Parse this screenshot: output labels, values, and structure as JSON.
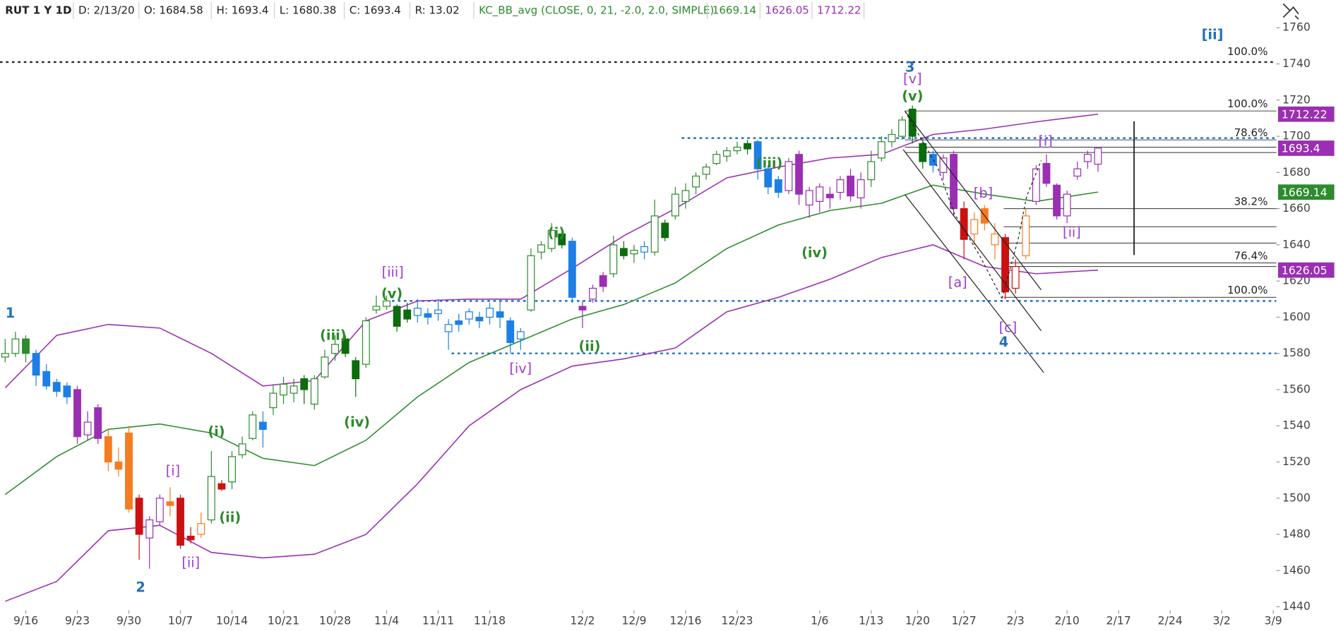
{
  "chart_data": {
    "type": "candlestick",
    "header": {
      "symbol": "RUT 1 Y 1D",
      "items": [
        "D: 2/13/20",
        "O: 1684.58",
        "H: 1693.4",
        "L: 1680.38",
        "C: 1693.4",
        "R: 13.02"
      ],
      "study": "KC_BB_avg (CLOSE, 0, 21, -2.0, 2.0, SIMPLE)"
    },
    "xlim": [
      -0.5,
      123.3
    ],
    "ylim": [
      1438.1,
      1775.1
    ],
    "yticks": [
      1440,
      1460,
      1480,
      1500,
      1520,
      1540,
      1560,
      1580,
      1600,
      1620,
      1640,
      1660,
      1680,
      1700,
      1720,
      1740,
      1760
    ],
    "xticks": [
      {
        "value": 2,
        "label": "9/16"
      },
      {
        "value": 7,
        "label": "9/23"
      },
      {
        "value": 12,
        "label": "9/30"
      },
      {
        "value": 17,
        "label": "10/7"
      },
      {
        "value": 22,
        "label": "10/14"
      },
      {
        "value": 27,
        "label": "10/21"
      },
      {
        "value": 32,
        "label": "10/28"
      },
      {
        "value": 37,
        "label": "11/4"
      },
      {
        "value": 42,
        "label": "11/11"
      },
      {
        "value": 47,
        "label": "11/18"
      },
      {
        "value": 56,
        "label": "12/2"
      },
      {
        "value": 61,
        "label": "12/9"
      },
      {
        "value": 66,
        "label": "12/16"
      },
      {
        "value": 71,
        "label": "12/23"
      },
      {
        "value": 79,
        "label": "1/6"
      },
      {
        "value": 84,
        "label": "1/13"
      },
      {
        "value": 88.5,
        "label": "1/20"
      },
      {
        "value": 93,
        "label": "1/27"
      },
      {
        "value": 98,
        "label": "2/3"
      },
      {
        "value": 103,
        "label": "2/10"
      },
      {
        "value": 108,
        "label": "2/17"
      },
      {
        "value": 113,
        "label": "2/24"
      },
      {
        "value": 118,
        "label": "3/2"
      },
      {
        "value": 123,
        "label": "3/9"
      }
    ],
    "open": [
      1578,
      1580,
      1588,
      1580,
      1570,
      1564,
      1562,
      1560,
      1535,
      1550,
      1534,
      1520,
      1536,
      1500,
      1478,
      1487,
      1498,
      1500,
      1479,
      1480,
      1488,
      1508,
      1509,
      1524,
      1533,
      1542,
      1550,
      1557,
      1558,
      1566,
      1552,
      1567,
      1580,
      1588,
      1576,
      1574,
      1604,
      1606,
      1606,
      1604,
      1601,
      1602,
      1602,
      1592,
      1598,
      1599,
      1600,
      1600,
      1603,
      1598,
      1588,
      1604,
      1636,
      1638,
      1646,
      1642,
      1606,
      1610,
      1623,
      1624,
      1638,
      1635,
      1636,
      1636,
      1652,
      1656,
      1664,
      1672,
      1679,
      1685,
      1689,
      1692,
      1696,
      1697,
      1682,
      1676,
      1670,
      1690,
      1662,
      1664,
      1668,
      1669,
      1678,
      1666,
      1676,
      1688,
      1697,
      1700,
      1715,
      1696,
      1690,
      1680,
      1690,
      1660,
      1646,
      1660,
      1640,
      1644,
      1616,
      1634,
      1664,
      1685,
      1673,
      1656,
      1678,
      1686,
      1684.58
    ],
    "high": [
      1588,
      1592,
      1590,
      1582,
      1574,
      1566,
      1564,
      1562,
      1548,
      1552,
      1538,
      1528,
      1540,
      1502,
      1490,
      1502,
      1506,
      1502,
      1484,
      1492,
      1526,
      1510,
      1526,
      1534,
      1548,
      1548,
      1563,
      1567,
      1566,
      1568,
      1568,
      1582,
      1590,
      1590,
      1578,
      1600,
      1612,
      1612,
      1607,
      1608,
      1610,
      1605,
      1610,
      1599,
      1602,
      1605,
      1603,
      1608,
      1610,
      1600,
      1594,
      1638,
      1642,
      1652,
      1648,
      1644,
      1609,
      1618,
      1625,
      1645,
      1642,
      1640,
      1642,
      1665,
      1654,
      1672,
      1674,
      1680,
      1685,
      1692,
      1694,
      1697,
      1698,
      1698,
      1684,
      1678,
      1688,
      1692,
      1672,
      1674,
      1672,
      1678,
      1682,
      1680,
      1692,
      1700,
      1704,
      1711,
      1717,
      1698,
      1692,
      1690,
      1692,
      1664,
      1658,
      1662,
      1652,
      1646,
      1632,
      1660,
      1684,
      1690,
      1674,
      1670,
      1686,
      1692,
      1693.4
    ],
    "low": [
      1575,
      1578,
      1575,
      1562,
      1560,
      1556,
      1552,
      1530,
      1532,
      1530,
      1515,
      1512,
      1492,
      1466,
      1461,
      1485,
      1490,
      1472,
      1475,
      1478,
      1486,
      1504,
      1505,
      1522,
      1532,
      1528,
      1546,
      1552,
      1553,
      1552,
      1549,
      1566,
      1576,
      1578,
      1556,
      1572,
      1602,
      1604,
      1592,
      1597,
      1597,
      1596,
      1598,
      1582,
      1592,
      1596,
      1594,
      1596,
      1594,
      1580,
      1582,
      1603,
      1632,
      1636,
      1638,
      1608,
      1594,
      1608,
      1614,
      1622,
      1632,
      1630,
      1632,
      1634,
      1642,
      1654,
      1660,
      1668,
      1676,
      1684,
      1686,
      1690,
      1690,
      1676,
      1668,
      1666,
      1668,
      1662,
      1655,
      1658,
      1660,
      1665,
      1664,
      1660,
      1672,
      1686,
      1694,
      1698,
      1696,
      1682,
      1680,
      1676,
      1656,
      1632,
      1640,
      1648,
      1632,
      1610,
      1613,
      1632,
      1662,
      1672,
      1654,
      1652,
      1676,
      1682,
      1680.38
    ],
    "close": [
      1580,
      1588,
      1580,
      1568,
      1562,
      1559,
      1556,
      1534,
      1542,
      1533,
      1520,
      1516,
      1494,
      1480,
      1488,
      1500,
      1496,
      1474,
      1477,
      1486,
      1512,
      1505,
      1523,
      1530,
      1546,
      1538,
      1558,
      1563,
      1562,
      1560,
      1566,
      1578,
      1585,
      1580,
      1566,
      1598,
      1606,
      1609,
      1595,
      1599,
      1605,
      1600,
      1604,
      1596,
      1596,
      1603,
      1598,
      1605,
      1600,
      1586,
      1592,
      1634,
      1640,
      1648,
      1640,
      1611,
      1604,
      1616,
      1617,
      1640,
      1634,
      1637,
      1639,
      1656,
      1644,
      1668,
      1670,
      1678,
      1683,
      1690,
      1692,
      1694,
      1693,
      1682,
      1672,
      1669,
      1686,
      1668,
      1670,
      1672,
      1666,
      1676,
      1667,
      1676,
      1686,
      1697,
      1701,
      1709,
      1700,
      1686,
      1684,
      1688,
      1660,
      1643,
      1654,
      1652,
      1646,
      1614,
      1628,
      1656,
      1682,
      1674,
      1656,
      1668,
      1682,
      1690,
      1693.4
    ],
    "colors": [
      "#2e8b2e",
      "#2e8b2e",
      "#2e8b2e",
      "#1d7fe6",
      "#1d7fe6",
      "#1d7fe6",
      "#1d7fe6",
      "#9a2fb3",
      "#9a2fb3",
      "#9a2fb3",
      "#f47d20",
      "#f47d20",
      "#f47d20",
      "#cc1111",
      "#9a2fb3",
      "#9a2fb3",
      "#f47d20",
      "#cc1111",
      "#cc1111",
      "#f47d20",
      "#2e8b2e",
      "#cc1111",
      "#2e8b2e",
      "#2e8b2e",
      "#2e8b2e",
      "#1d7fe6",
      "#2e8b2e",
      "#2e8b2e",
      "#2e8b2e",
      "#0c6b0c",
      "#2e8b2e",
      "#2e8b2e",
      "#2e8b2e",
      "#0c6b0c",
      "#0c6b0c",
      "#2e8b2e",
      "#2e8b2e",
      "#2e8b2e",
      "#0c6b0c",
      "#0c6b0c",
      "#1d7fe6",
      "#1d7fe6",
      "#1d7fe6",
      "#1d7fe6",
      "#1d7fe6",
      "#1d7fe6",
      "#1d7fe6",
      "#1d7fe6",
      "#1d7fe6",
      "#1d7fe6",
      "#1d7fe6",
      "#2e8b2e",
      "#2e8b2e",
      "#2e8b2e",
      "#0c6b0c",
      "#1d7fe6",
      "#9a2fb3",
      "#9a2fb3",
      "#9a2fb3",
      "#2e8b2e",
      "#0c6b0c",
      "#2e8b2e",
      "#1d7fe6",
      "#2e8b2e",
      "#0c6b0c",
      "#2e8b2e",
      "#2e8b2e",
      "#2e8b2e",
      "#2e8b2e",
      "#2e8b2e",
      "#2e8b2e",
      "#2e8b2e",
      "#0c6b0c",
      "#1d7fe6",
      "#1d7fe6",
      "#1d7fe6",
      "#9a2fb3",
      "#9a2fb3",
      "#9a2fb3",
      "#9a2fb3",
      "#9a2fb3",
      "#9a2fb3",
      "#9a2fb3",
      "#9a2fb3",
      "#2e8b2e",
      "#2e8b2e",
      "#2e8b2e",
      "#2e8b2e",
      "#0c6b0c",
      "#0c6b0c",
      "#1d7fe6",
      "#9a2fb3",
      "#9a2fb3",
      "#cc1111",
      "#f47d20",
      "#f47d20",
      "#f47d20",
      "#cc1111",
      "#cc1111",
      "#f47d20",
      "#9a2fb3",
      "#9a2fb3",
      "#9a2fb3",
      "#9a2fb3",
      "#9a2fb3",
      "#9a2fb3",
      "#9a2fb3"
    ],
    "overlays": [
      {
        "color": "#9a2fb3",
        "x": [
          0,
          5,
          10,
          15,
          20,
          25,
          30,
          35,
          40,
          45,
          50,
          55,
          60,
          65,
          70,
          75,
          80,
          85,
          90,
          95,
          100,
          106
        ],
        "values": [
          1561,
          1590,
          1596,
          1594,
          1580,
          1562,
          1565,
          1598,
          1609,
          1610,
          1610,
          1627,
          1645,
          1660,
          1677,
          1683,
          1688,
          1690,
          1701,
          1704,
          1708,
          1712.22
        ]
      },
      {
        "color": "#2e8b2e",
        "x": [
          0,
          5,
          10,
          15,
          20,
          25,
          30,
          35,
          40,
          45,
          50,
          55,
          60,
          65,
          70,
          75,
          80,
          85,
          90,
          95,
          100,
          106
        ],
        "values": [
          1502,
          1523,
          1538,
          1541,
          1536,
          1522,
          1518,
          1532,
          1556,
          1575,
          1587,
          1599,
          1607,
          1619,
          1638,
          1651,
          1659,
          1663,
          1673,
          1668,
          1664,
          1669.14
        ]
      },
      {
        "color": "#9a2fb3",
        "x": [
          0,
          5,
          10,
          15,
          20,
          25,
          30,
          35,
          40,
          45,
          50,
          55,
          60,
          65,
          70,
          75,
          80,
          85,
          90,
          95,
          100,
          106
        ],
        "values": [
          1443,
          1454,
          1482,
          1485,
          1470,
          1467,
          1469,
          1480,
          1508,
          1540,
          1560,
          1573,
          1577,
          1583,
          1603,
          1611,
          1621,
          1633,
          1640,
          1628,
          1624,
          1626.05
        ]
      }
    ],
    "reference_lines": [
      {
        "value": 1741,
        "color": "#222222",
        "label": "100.0%"
      },
      {
        "value": 1699,
        "color": "#1f6fc0"
      },
      {
        "value": 1609,
        "color": "#1f6fc0"
      },
      {
        "value": 1580,
        "color": "#1f6fc0"
      }
    ],
    "fib_levels": [
      {
        "value": 1714,
        "label": "100.0%"
      },
      {
        "value": 1698,
        "label": "78.6%"
      },
      {
        "value": 1694
      },
      {
        "value": 1691
      },
      {
        "value": 1660,
        "label": "38.2%"
      },
      {
        "value": 1650
      },
      {
        "value": 1641
      },
      {
        "value": 1630,
        "label": "76.4%"
      },
      {
        "value": 1628
      },
      {
        "value": 1611,
        "label": "100.0%"
      }
    ],
    "annotations": [
      "1",
      "2",
      "[i]",
      "[ii]",
      "(i)",
      "(ii)",
      "(iii)",
      "(iv)",
      "(v)",
      "[iii]",
      "[iv]",
      "(i)",
      "(ii)",
      "(iii)",
      "(iv)",
      "3",
      "[v]",
      "(v)",
      "[a]",
      "[b]",
      "[c]",
      "4",
      "[i]",
      "[ii]",
      "[ii]"
    ]
  }
}
